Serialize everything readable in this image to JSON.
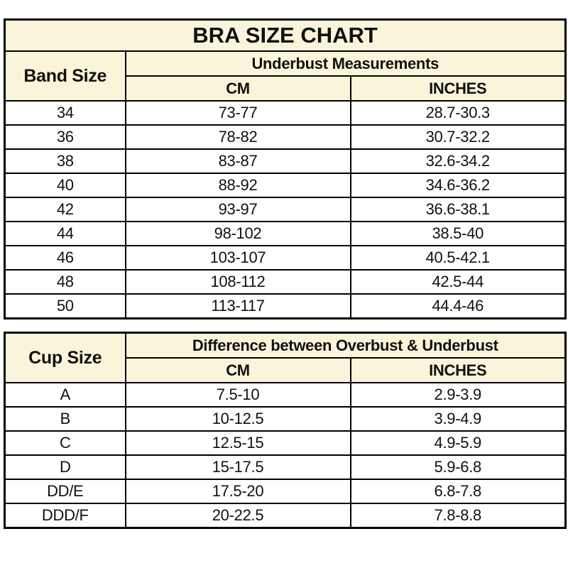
{
  "title": "BRA SIZE CHART",
  "colors": {
    "header_bg": "#FAF5DA",
    "border": "#000000",
    "row_bg": "#FFFFFF",
    "text": "#111111"
  },
  "chart_data": [
    {
      "type": "table",
      "title": "BRA SIZE CHART",
      "corner_header": "Band Size",
      "group_header": "Underbust Measurements",
      "columns": [
        "CM",
        "INCHES"
      ],
      "rows": [
        [
          "34",
          "73-77",
          "28.7-30.3"
        ],
        [
          "36",
          "78-82",
          "30.7-32.2"
        ],
        [
          "38",
          "83-87",
          "32.6-34.2"
        ],
        [
          "40",
          "88-92",
          "34.6-36.2"
        ],
        [
          "42",
          "93-97",
          "36.6-38.1"
        ],
        [
          "44",
          "98-102",
          "38.5-40"
        ],
        [
          "46",
          "103-107",
          "40.5-42.1"
        ],
        [
          "48",
          "108-112",
          "42.5-44"
        ],
        [
          "50",
          "113-117",
          "44.4-46"
        ]
      ]
    },
    {
      "type": "table",
      "corner_header": "Cup Size",
      "group_header": "Difference between Overbust & Underbust",
      "columns": [
        "CM",
        "INCHES"
      ],
      "rows": [
        [
          "A",
          "7.5-10",
          "2.9-3.9"
        ],
        [
          "B",
          "10-12.5",
          "3.9-4.9"
        ],
        [
          "C",
          "12.5-15",
          "4.9-5.9"
        ],
        [
          "D",
          "15-17.5",
          "5.9-6.8"
        ],
        [
          "DD/E",
          "17.5-20",
          "6.8-7.8"
        ],
        [
          "DDD/F",
          "20-22.5",
          "7.8-8.8"
        ]
      ]
    }
  ]
}
